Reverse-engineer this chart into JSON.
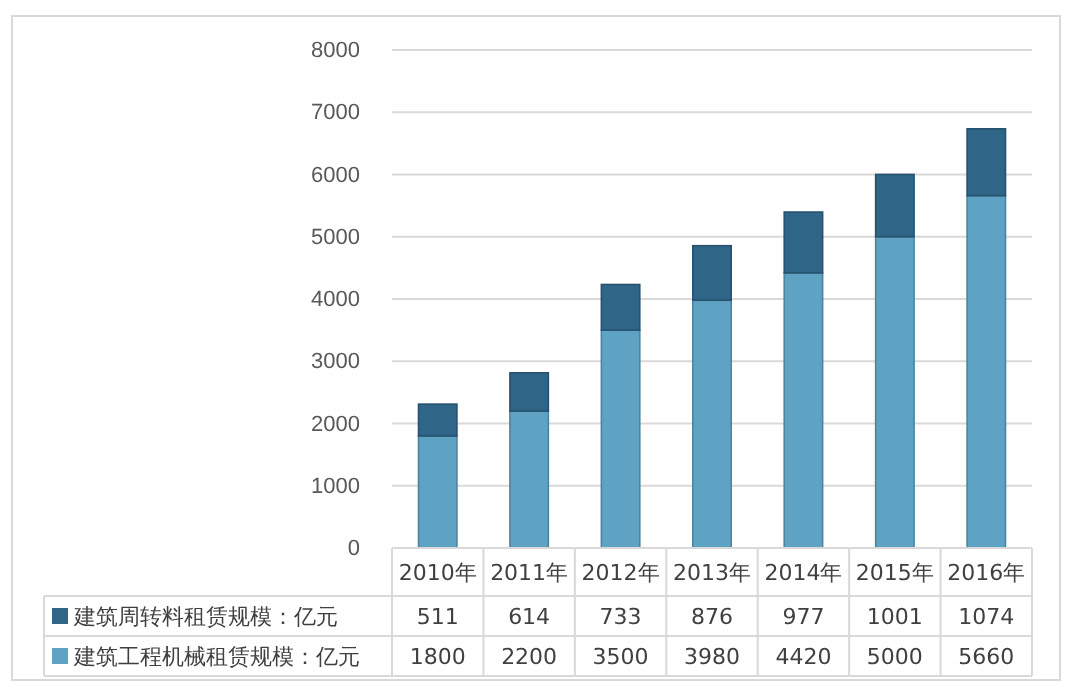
{
  "chart_data": {
    "type": "bar",
    "stacked": true,
    "categories": [
      "2010年",
      "2011年",
      "2012年",
      "2013年",
      "2014年",
      "2015年",
      "2016年"
    ],
    "series": [
      {
        "name": "建筑工程机械租赁规模：亿元",
        "color": "#5fa3c4",
        "values": [
          1800,
          2200,
          3500,
          3980,
          4420,
          5000,
          5660
        ]
      },
      {
        "name": "建筑周转料租赁规模：亿元",
        "color": "#2f6688",
        "values": [
          511,
          614,
          733,
          876,
          977,
          1001,
          1074
        ]
      }
    ],
    "ylim": [
      0,
      8000
    ],
    "yticks": [
      0,
      1000,
      2000,
      3000,
      4000,
      5000,
      6000,
      7000,
      8000
    ],
    "grid": "y",
    "legend": "bottom",
    "data_labels": true
  }
}
